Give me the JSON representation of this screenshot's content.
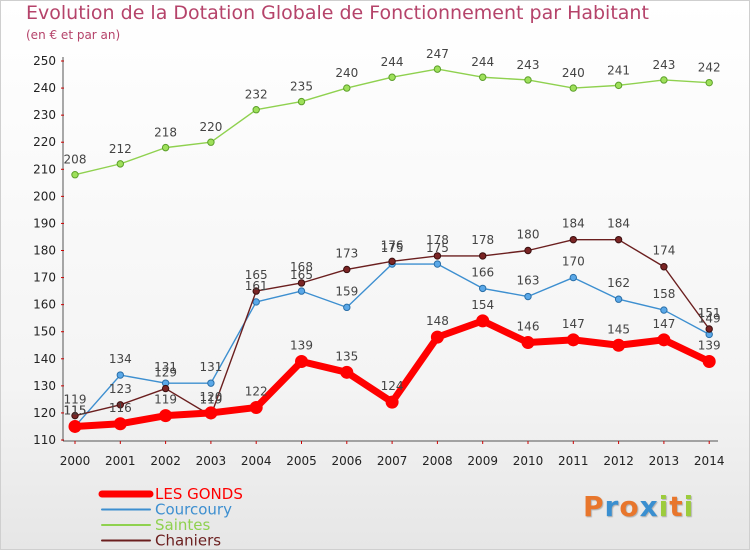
{
  "title": "Evolution de la Dotation Globale de Fonctionnement par Habitant",
  "subtitle": "(en € et par an)",
  "logo": {
    "text": "Proxiti",
    "letters": [
      {
        "ch": "P",
        "color": "#e8762c"
      },
      {
        "ch": "r",
        "color": "#3a8fd0"
      },
      {
        "ch": "o",
        "color": "#e8762c"
      },
      {
        "ch": "x",
        "color": "#3a8fd0"
      },
      {
        "ch": "i",
        "color": "#9ccc3c"
      },
      {
        "ch": "t",
        "color": "#e8762c"
      },
      {
        "ch": "i",
        "color": "#9ccc3c"
      }
    ]
  },
  "chart_data": {
    "type": "line",
    "x": [
      "2000",
      "2001",
      "2002",
      "2003",
      "2004",
      "2005",
      "2006",
      "2007",
      "2008",
      "2009",
      "2010",
      "2011",
      "2012",
      "2013",
      "2014"
    ],
    "ylim": [
      110,
      250
    ],
    "yticks": [
      110,
      120,
      130,
      140,
      150,
      160,
      170,
      180,
      190,
      200,
      210,
      220,
      230,
      240,
      250
    ],
    "grid": false,
    "legend": "bottom-left",
    "series": [
      {
        "name": "LES GONDS",
        "color": "#ff0000",
        "values": [
          115,
          116,
          119,
          120,
          122,
          139,
          135,
          124,
          148,
          154,
          146,
          147,
          145,
          147,
          139
        ]
      },
      {
        "name": "Courcoury",
        "color": "#3d8fd0",
        "values": [
          115,
          134,
          131,
          131,
          161,
          165,
          159,
          175,
          175,
          166,
          163,
          170,
          162,
          158,
          149
        ]
      },
      {
        "name": "Saintes",
        "color": "#8fd14f",
        "values": [
          208,
          212,
          218,
          220,
          232,
          235,
          240,
          244,
          247,
          244,
          243,
          240,
          241,
          243,
          242
        ]
      },
      {
        "name": "Chaniers",
        "color": "#6b1f1f",
        "values": [
          119,
          123,
          129,
          119,
          165,
          168,
          173,
          176,
          178,
          178,
          180,
          184,
          184,
          174,
          151
        ]
      }
    ]
  }
}
